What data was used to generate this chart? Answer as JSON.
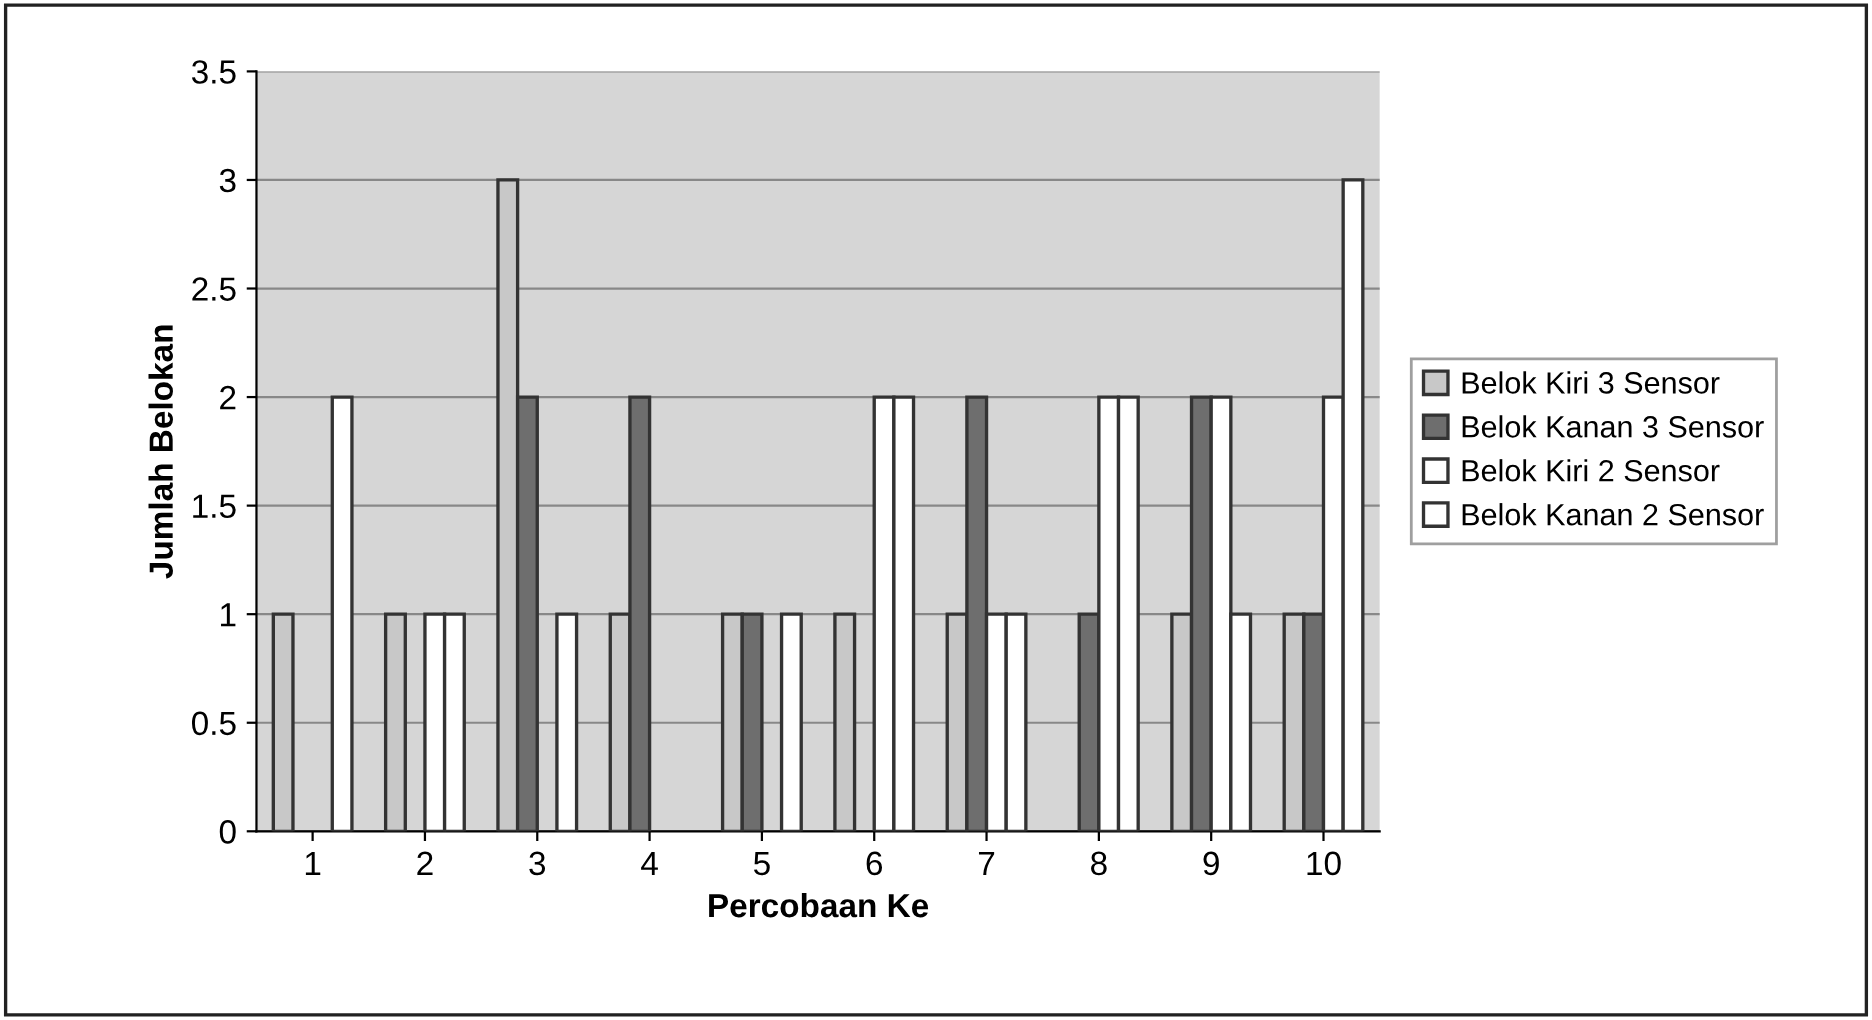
{
  "chart_data": {
    "type": "bar",
    "xlabel": "Percobaan Ke",
    "ylabel": "Jumlah Belokan",
    "categories": [
      "1",
      "2",
      "3",
      "4",
      "5",
      "6",
      "7",
      "8",
      "9",
      "10"
    ],
    "series": [
      {
        "name": "Belok Kiri 3 Sensor",
        "color": "#c8c8c8",
        "values": [
          1,
          1,
          3,
          1,
          1,
          1,
          1,
          0,
          1,
          1
        ]
      },
      {
        "name": "Belok Kanan 3 Sensor",
        "color": "#6e6e6e",
        "values": [
          0,
          0,
          2,
          2,
          1,
          0,
          2,
          1,
          2,
          1
        ]
      },
      {
        "name": "Belok Kiri 2 Sensor",
        "color": "#ffffff",
        "values": [
          0,
          1,
          0,
          0,
          0,
          2,
          1,
          2,
          2,
          2
        ]
      },
      {
        "name": "Belok Kanan 2 Sensor",
        "color": "#ffffff",
        "values": [
          2,
          1,
          1,
          0,
          1,
          2,
          1,
          2,
          1,
          3
        ]
      }
    ],
    "ylim": [
      0,
      3.5
    ],
    "yticks": [
      0,
      0.5,
      1,
      1.5,
      2,
      2.5,
      3,
      3.5
    ],
    "grid": "y",
    "legend": "right"
  }
}
